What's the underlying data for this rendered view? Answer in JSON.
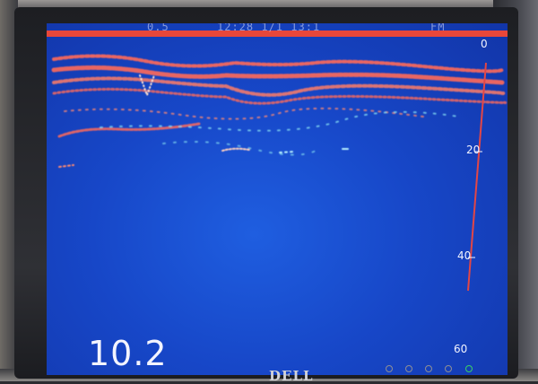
{
  "monitor": {
    "brand": "DELL"
  },
  "sounder": {
    "header_left": "0.5",
    "header_center": "12:28 1/1 13:1",
    "header_right": "FM",
    "unit_marker": "0",
    "depth_scale": [
      "20",
      "40",
      "60"
    ],
    "readout": "10.2"
  },
  "colors": {
    "water": "#1747c8",
    "echo_strong": "#ff6a5a",
    "echo_weak": "#7ed4f0",
    "scale_line": "#e24646"
  },
  "monitor_buttons": [
    "menu-button",
    "minus-button",
    "plus-button",
    "input-button",
    "power-button"
  ]
}
